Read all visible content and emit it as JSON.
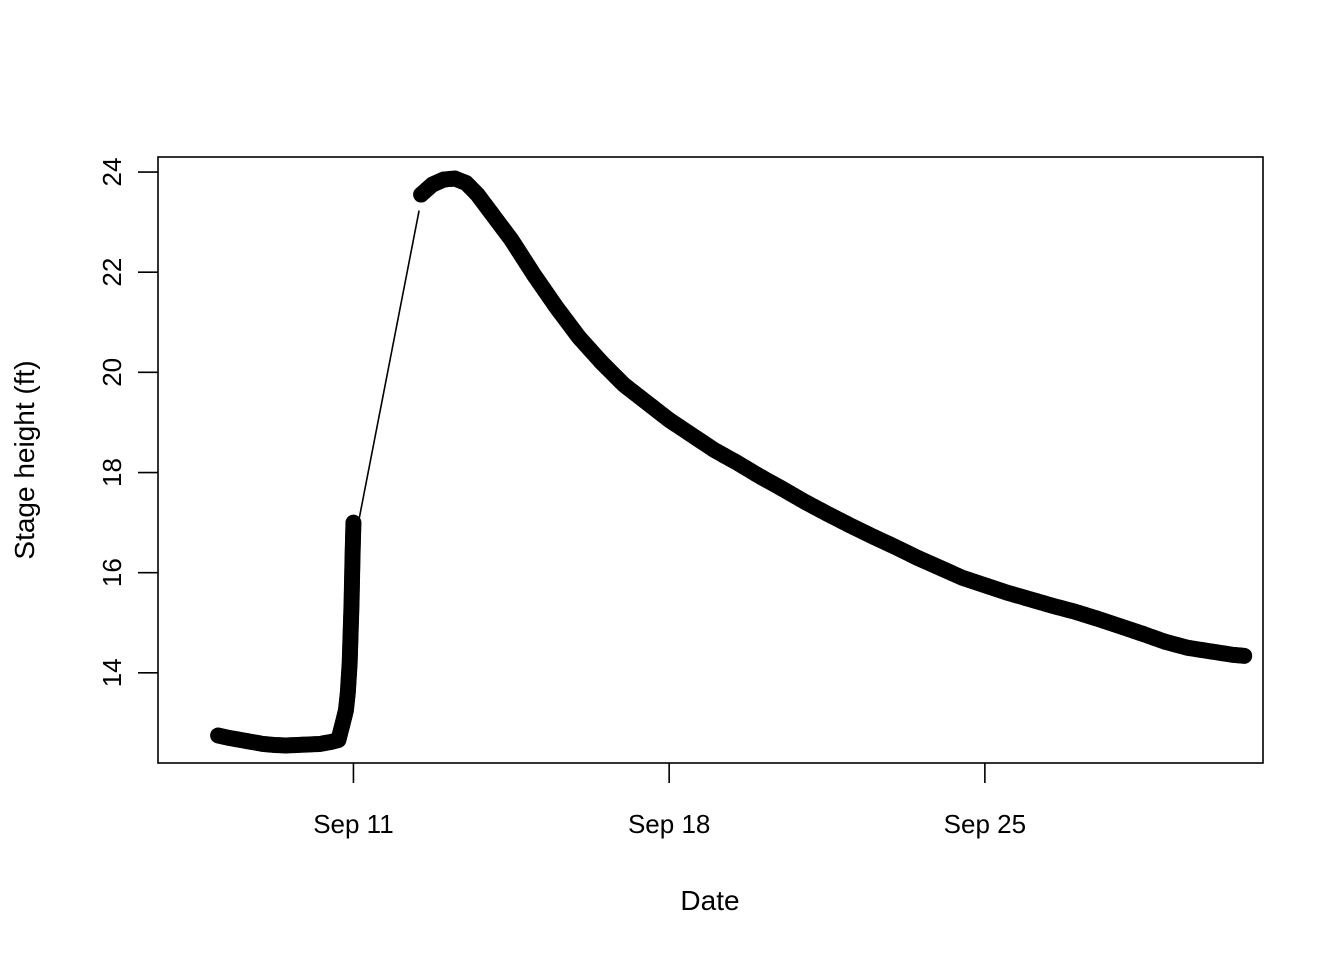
{
  "chart_data": {
    "type": "scatter",
    "title": "",
    "xlabel": "Date",
    "ylabel": "Stage height (ft)",
    "x_axis_type": "date",
    "xlim": [
      "2023-09-06T16:00",
      "2023-10-01T04:00"
    ],
    "ylim": [
      12.2,
      24.3
    ],
    "x_ticks": [
      {
        "value": "2023-09-11",
        "label": "Sep 11"
      },
      {
        "value": "2023-09-18",
        "label": "Sep 18"
      },
      {
        "value": "2023-09-25",
        "label": "Sep 25"
      }
    ],
    "y_ticks": [
      {
        "value": 14,
        "label": "14"
      },
      {
        "value": 16,
        "label": "16"
      },
      {
        "value": 18,
        "label": "18"
      },
      {
        "value": 20,
        "label": "20"
      },
      {
        "value": 22,
        "label": "22"
      },
      {
        "value": 24,
        "label": "24"
      }
    ],
    "grid": false,
    "legend": "none",
    "marker_color": "#000000",
    "gap_line": {
      "from": {
        "x": "2023-09-11T00:00",
        "y": 17.0
      },
      "to": {
        "x": "2023-09-12T12:00",
        "y": 23.55
      }
    },
    "series": [
      {
        "points": [
          [
            "2023-09-08T00:00",
            12.75
          ],
          [
            "2023-09-08T06:00",
            12.7
          ],
          [
            "2023-09-08T12:00",
            12.66
          ],
          [
            "2023-09-08T18:00",
            12.62
          ],
          [
            "2023-09-09T00:00",
            12.58
          ],
          [
            "2023-09-09T06:00",
            12.56
          ],
          [
            "2023-09-09T12:00",
            12.55
          ],
          [
            "2023-09-09T18:00",
            12.56
          ],
          [
            "2023-09-10T00:00",
            12.57
          ],
          [
            "2023-09-10T06:00",
            12.58
          ],
          [
            "2023-09-10T12:00",
            12.62
          ],
          [
            "2023-09-10T16:00",
            12.66
          ],
          [
            "2023-09-10T18:00",
            12.95
          ],
          [
            "2023-09-10T20:00",
            13.25
          ],
          [
            "2023-09-10T21:00",
            13.6
          ],
          [
            "2023-09-10T22:00",
            14.2
          ],
          [
            "2023-09-10T23:00",
            15.4
          ],
          [
            "2023-09-10T23:30",
            16.3
          ],
          [
            "2023-09-11T00:00",
            17.0
          ],
          [
            "2023-09-12T12:00",
            23.55
          ],
          [
            "2023-09-12T18:00",
            23.75
          ],
          [
            "2023-09-13T00:00",
            23.85
          ],
          [
            "2023-09-13T06:00",
            23.87
          ],
          [
            "2023-09-13T12:00",
            23.78
          ],
          [
            "2023-09-13T18:00",
            23.55
          ],
          [
            "2023-09-14T00:00",
            23.25
          ],
          [
            "2023-09-14T12:00",
            22.65
          ],
          [
            "2023-09-15T00:00",
            21.95
          ],
          [
            "2023-09-15T12:00",
            21.3
          ],
          [
            "2023-09-16T00:00",
            20.7
          ],
          [
            "2023-09-16T12:00",
            20.2
          ],
          [
            "2023-09-17T00:00",
            19.75
          ],
          [
            "2023-09-17T12:00",
            19.4
          ],
          [
            "2023-09-18T00:00",
            19.05
          ],
          [
            "2023-09-18T12:00",
            18.75
          ],
          [
            "2023-09-19T00:00",
            18.45
          ],
          [
            "2023-09-19T12:00",
            18.2
          ],
          [
            "2023-09-20T00:00",
            17.93
          ],
          [
            "2023-09-20T12:00",
            17.68
          ],
          [
            "2023-09-21T00:00",
            17.42
          ],
          [
            "2023-09-21T12:00",
            17.18
          ],
          [
            "2023-09-22T00:00",
            16.95
          ],
          [
            "2023-09-22T12:00",
            16.73
          ],
          [
            "2023-09-23T00:00",
            16.52
          ],
          [
            "2023-09-23T12:00",
            16.3
          ],
          [
            "2023-09-24T00:00",
            16.1
          ],
          [
            "2023-09-24T12:00",
            15.9
          ],
          [
            "2023-09-25T00:00",
            15.75
          ],
          [
            "2023-09-25T12:00",
            15.6
          ],
          [
            "2023-09-26T00:00",
            15.47
          ],
          [
            "2023-09-26T12:00",
            15.34
          ],
          [
            "2023-09-27T00:00",
            15.22
          ],
          [
            "2023-09-27T12:00",
            15.08
          ],
          [
            "2023-09-28T00:00",
            14.93
          ],
          [
            "2023-09-28T12:00",
            14.78
          ],
          [
            "2023-09-29T00:00",
            14.62
          ],
          [
            "2023-09-29T12:00",
            14.5
          ],
          [
            "2023-09-30T00:00",
            14.43
          ],
          [
            "2023-09-30T12:00",
            14.36
          ],
          [
            "2023-09-30T18:00",
            14.34
          ]
        ]
      }
    ]
  }
}
